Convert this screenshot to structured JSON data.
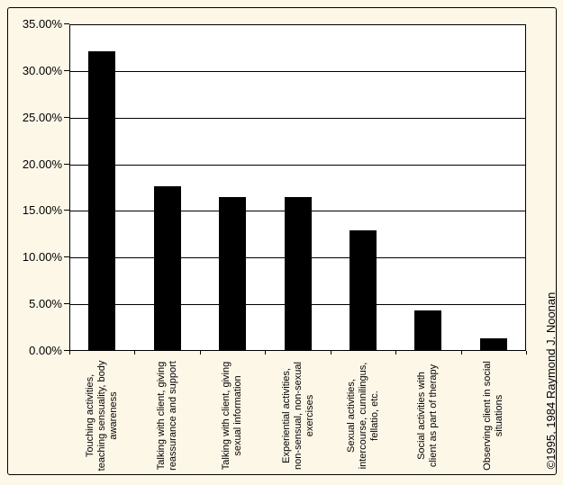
{
  "chart_data": {
    "type": "bar",
    "title": "",
    "xlabel": "",
    "ylabel": "",
    "categories": [
      "Touching activities, teaching sensuality, body awareness",
      "Talking with client, giving reassurance and support",
      "Talking with client, giving sexual information",
      "Experiential activities, non-sensual, non-sexual exercises",
      "Sexual activities, intercourse, cunnilingus, fellatio, etc.",
      "Social activities with client as part of therapy",
      "Observing client in social situations"
    ],
    "category_display_lines": [
      [
        "Touching activities,",
        "teaching sensuality, body",
        "awareness"
      ],
      [
        "Talking with client, giving",
        "reassurance and support"
      ],
      [
        "Talking with client, giving",
        "sexual information"
      ],
      [
        "Experiential activities,",
        "non-sensual, non-sexual",
        "exercises"
      ],
      [
        "Sexual activities,",
        "intercourse, cunnilingus,",
        "fellatio, etc."
      ],
      [
        "Social activities with",
        "client as part of therapy"
      ],
      [
        "Observing client in social",
        "situations"
      ]
    ],
    "values": [
      32.1,
      17.6,
      16.4,
      16.4,
      12.9,
      4.3,
      1.3
    ],
    "unit": "%",
    "ylim": [
      0,
      35
    ],
    "y_tick_labels": [
      "35.00%",
      "30.00%",
      "25.00%",
      "20.00%",
      "15.00%",
      "10.00%",
      "5.00%",
      "0.00%"
    ],
    "grid": true,
    "legend": "none",
    "bar_color": "#000000",
    "gridline_color": "#000000",
    "plot_background": "#FFFFFF",
    "background_color": "#FDF7E8",
    "copyright": "©1995, 1984 Raymond J. Noonan"
  }
}
